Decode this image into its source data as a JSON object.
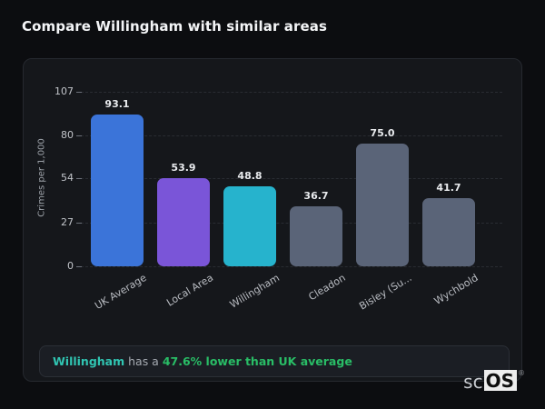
{
  "page_title": "Compare Willingham with similar areas",
  "chart_data": {
    "type": "bar",
    "title": "",
    "categories": [
      "UK Average",
      "Local Area",
      "Willingham",
      "Cleadon",
      "Bisley (Su...",
      "Wychbold"
    ],
    "values": [
      93.1,
      53.9,
      48.8,
      36.7,
      75.0,
      41.7
    ],
    "value_labels": [
      "93.1",
      "53.9",
      "48.8",
      "36.7",
      "75.0",
      "41.7"
    ],
    "bar_colors": [
      "#3b74d9",
      "#7a55d8",
      "#26b3cd",
      "#5a6478",
      "#5a6478",
      "#5a6478"
    ],
    "xlabel": "",
    "ylabel": "Crimes per 1,000",
    "yticks": [
      0,
      27,
      54,
      80,
      107
    ],
    "ylim": [
      0,
      107
    ],
    "grid": "horizontal-dashed",
    "legend": "none"
  },
  "note": {
    "highlight": "Willingham",
    "middle": " has a ",
    "stat": "47.6% lower than UK average"
  },
  "logo": {
    "prefix": "sc",
    "suffix": "OS",
    "registered": "®"
  },
  "colors": {
    "page_bg": "#0c0d10",
    "card_bg": "#15171b",
    "note_bg": "#1b1e24",
    "highlight": "#30c5b2",
    "stat_green": "#29bd66",
    "blue": "#3b74d9",
    "purple": "#7a55d8",
    "teal": "#26b3cd",
    "gray": "#5a6478"
  }
}
